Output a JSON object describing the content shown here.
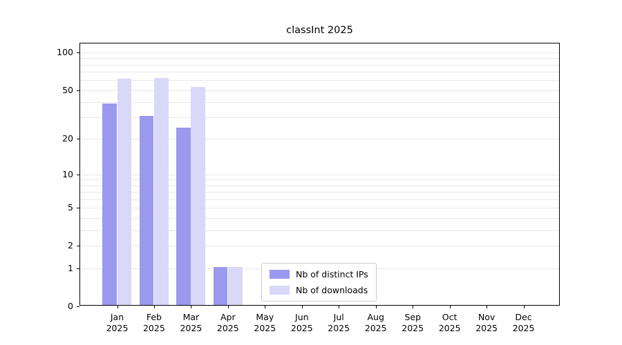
{
  "chart_data": {
    "type": "bar",
    "title": "classInt 2025",
    "categories": [
      [
        "Jan",
        "2025"
      ],
      [
        "Feb",
        "2025"
      ],
      [
        "Mar",
        "2025"
      ],
      [
        "Apr",
        "2025"
      ],
      [
        "May",
        "2025"
      ],
      [
        "Jun",
        "2025"
      ],
      [
        "Jul",
        "2025"
      ],
      [
        "Aug",
        "2025"
      ],
      [
        "Sep",
        "2025"
      ],
      [
        "Oct",
        "2025"
      ],
      [
        "Nov",
        "2025"
      ],
      [
        "Dec",
        "2025"
      ]
    ],
    "series": [
      {
        "name": "Nb of distinct IPs",
        "color": "#9a99ee",
        "values": [
          38,
          30,
          24,
          1,
          0,
          0,
          0,
          0,
          0,
          0,
          0,
          0
        ]
      },
      {
        "name": "Nb of downloads",
        "color": "#d9d8f8",
        "values": [
          60,
          61,
          52,
          1,
          0,
          0,
          0,
          0,
          0,
          0,
          0,
          0
        ]
      }
    ],
    "yscale": "log1p",
    "yticks": [
      0,
      1,
      2,
      5,
      10,
      20,
      50,
      100
    ],
    "grid_values": [
      1,
      2,
      3,
      4,
      5,
      6,
      7,
      8,
      9,
      10,
      20,
      30,
      40,
      50,
      60,
      70,
      80,
      90,
      100
    ],
    "ylim_top": 118,
    "xlabel": "",
    "ylabel": "",
    "grid": "on",
    "legend_position": "lower center",
    "colors": {
      "grid_line": "#e8e8e8",
      "spine": "#000000",
      "background": "#ffffff"
    }
  }
}
